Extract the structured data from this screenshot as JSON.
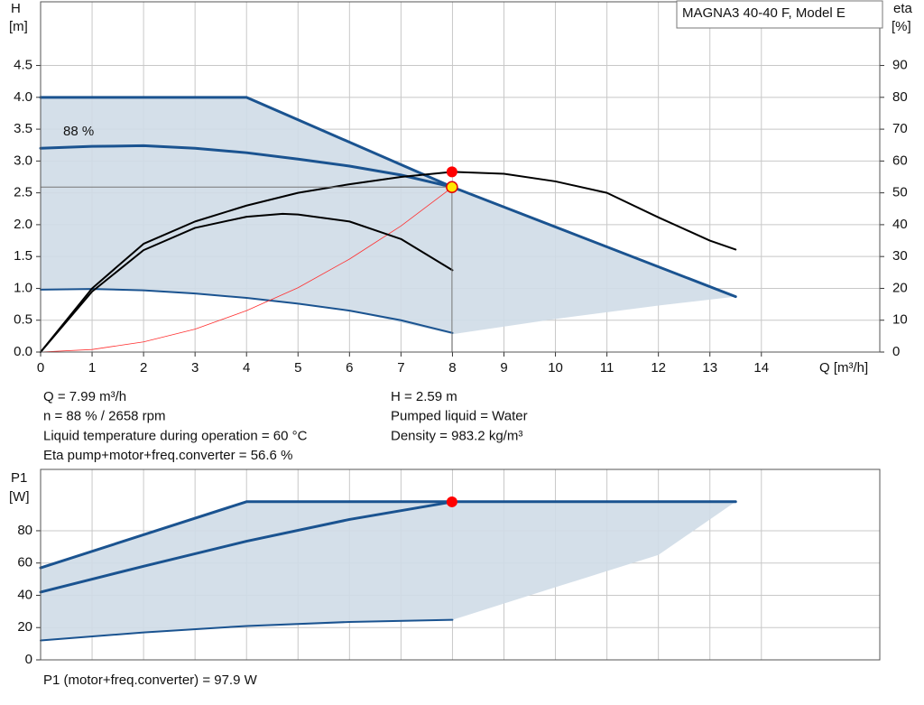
{
  "chart_data": [
    {
      "type": "line",
      "title": "MAGNA3 40-40 F, Model E",
      "ylabel": "H",
      "yunit": "[m]",
      "y2label": "eta",
      "y2unit": "[%]",
      "xlabel": "Q [m³/h]",
      "annotation": "88 %",
      "xlim": [
        0,
        16.3
      ],
      "xticks": [
        0,
        1,
        2,
        3,
        4,
        5,
        6,
        7,
        8,
        9,
        10,
        11,
        12,
        13,
        14
      ],
      "ylim": [
        0,
        5.5
      ],
      "yticks": [
        {
          "value": 0,
          "label": "0.0"
        },
        {
          "value": 0.5,
          "label": "0.5"
        },
        {
          "value": 1,
          "label": "1.0"
        },
        {
          "value": 1.5,
          "label": "1.5"
        },
        {
          "value": 2,
          "label": "2.0"
        },
        {
          "value": 2.5,
          "label": "2.5"
        },
        {
          "value": 3,
          "label": "3.0"
        },
        {
          "value": 3.5,
          "label": "3.5"
        },
        {
          "value": 4,
          "label": "4.0"
        },
        {
          "value": 4.5,
          "label": "4.5"
        }
      ],
      "y2lim": [
        0,
        110
      ],
      "y2ticks": [
        0,
        10,
        20,
        30,
        40,
        50,
        60,
        70,
        80,
        90
      ],
      "grid": true,
      "series": [
        {
          "kind": "area",
          "color": "#cfdbe7",
          "x": [
            0,
            4,
            8,
            13.5,
            12,
            10,
            8,
            6,
            4,
            2,
            0
          ],
          "values": [
            4,
            4,
            2.59,
            0.87,
            0.73,
            0.52,
            0.28,
            0.65,
            0.85,
            0.97,
            0.98
          ]
        },
        {
          "kind": "line",
          "color": "#1a5390",
          "linewidth": 3,
          "x": [
            0,
            4,
            8,
            13.5
          ],
          "values": [
            4,
            4,
            2.59,
            0.87
          ]
        },
        {
          "kind": "line",
          "color": "#1a5390",
          "linewidth": 3,
          "x": [
            0,
            1,
            2,
            3,
            4,
            5,
            6,
            7,
            8
          ],
          "values": [
            3.2,
            3.23,
            3.24,
            3.2,
            3.13,
            3.03,
            2.92,
            2.78,
            2.59
          ]
        },
        {
          "kind": "line",
          "color": "#1a5390",
          "linewidth": 2,
          "x": [
            0,
            1,
            2,
            3,
            4,
            5,
            6,
            7,
            8
          ],
          "values": [
            0.98,
            0.99,
            0.97,
            0.92,
            0.85,
            0.76,
            0.65,
            0.5,
            0.3
          ]
        },
        {
          "kind": "line",
          "color": "#ff3030",
          "linewidth": 0.8,
          "x": [
            0,
            1,
            2,
            3,
            4,
            5,
            6,
            7,
            8
          ],
          "values": [
            0,
            0.04,
            0.16,
            0.36,
            0.65,
            1.01,
            1.46,
            1.98,
            2.59
          ]
        },
        {
          "kind": "line",
          "color": "#000000",
          "linewidth": 2,
          "axis": "y2",
          "x": [
            0,
            1,
            2,
            3,
            4,
            5,
            6,
            7,
            8,
            9,
            10,
            11,
            12,
            13,
            13.5
          ],
          "values": [
            0,
            20,
            34,
            41,
            46,
            50,
            52.7,
            55,
            56.6,
            56,
            53.6,
            50,
            42.3,
            35,
            32.2
          ]
        },
        {
          "kind": "line",
          "color": "#000000",
          "linewidth": 2,
          "axis": "y2",
          "x": [
            0,
            1,
            2,
            3,
            4,
            4.7,
            5,
            6,
            7,
            8
          ],
          "values": [
            0,
            19,
            32,
            39,
            42.5,
            43.4,
            43.2,
            41,
            35.5,
            25.7
          ]
        }
      ],
      "markers": [
        {
          "x": 7.99,
          "y": 56.6,
          "axis": "y2",
          "color": "#ff0000"
        },
        {
          "x": 7.99,
          "y": 2.59,
          "color": "#ffe600",
          "guides": true
        }
      ],
      "info_left": [
        "Q = 7.99 m³/h",
        "n = 88 % / 2658 rpm",
        "Liquid temperature during operation = 60 °C",
        "Eta pump+motor+freq.converter = 56.6 %"
      ],
      "info_right": [
        "H = 2.59 m",
        "Pumped liquid = Water",
        "Density = 983.2 kg/m³"
      ]
    },
    {
      "type": "line",
      "ylabel": "P1",
      "yunit": "[W]",
      "xlim": [
        0,
        16.3
      ],
      "ylim": [
        0,
        118
      ],
      "yticks": [
        0,
        20,
        40,
        60,
        80
      ],
      "grid": true,
      "series": [
        {
          "kind": "area",
          "color": "#cfdbe7",
          "x": [
            0,
            4,
            13.5,
            12,
            10,
            8,
            6,
            4,
            2,
            0
          ],
          "values": [
            57,
            98,
            98,
            65,
            45,
            24.8,
            23.5,
            21,
            17,
            12
          ]
        },
        {
          "kind": "line",
          "color": "#1a5390",
          "linewidth": 3,
          "x": [
            0,
            4,
            13.5
          ],
          "values": [
            57,
            98,
            98
          ]
        },
        {
          "kind": "line",
          "color": "#1a5390",
          "linewidth": 3,
          "x": [
            0,
            2,
            4,
            6,
            8
          ],
          "values": [
            42,
            58,
            73.5,
            87,
            97.9
          ]
        },
        {
          "kind": "line",
          "color": "#1a5390",
          "linewidth": 2,
          "x": [
            0,
            2,
            4,
            6,
            8
          ],
          "values": [
            12,
            17,
            21,
            23.5,
            24.8
          ]
        }
      ],
      "markers": [
        {
          "x": 7.99,
          "y": 97.9,
          "color": "#ff0000"
        }
      ],
      "note": "P1 (motor+freq.converter) = 97.9 W"
    }
  ]
}
